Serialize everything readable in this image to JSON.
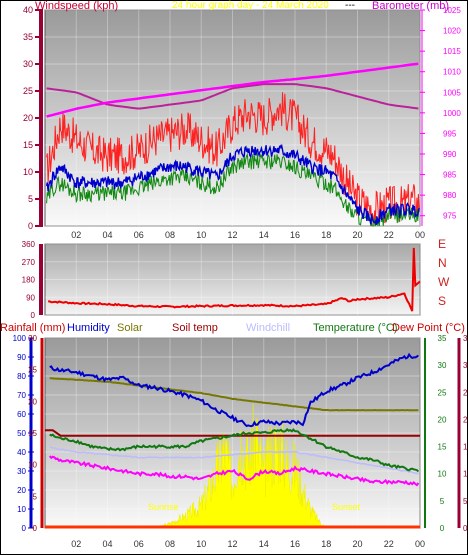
{
  "header": {
    "left_label": "Windspeed (kph)",
    "center_label": "24 hour graph day - 24 March 2020",
    "center_suffix": "---",
    "right_label": "Barometer (mb)"
  },
  "colors": {
    "wind_axis": "#990033",
    "baro_axis": "#ff00ff",
    "gust": "#ff2020",
    "avg": "#0000cc",
    "wind_min": "#118811",
    "baro_series": "#bb2299",
    "dir_series": "#ee0000",
    "hum": "#0000cc",
    "solar_line": "#777700",
    "soil": "#990000",
    "temp": "#117711",
    "dew": "#ff00ff",
    "windchill": "#bbbbff",
    "sun_fill": "#ffff00"
  },
  "chart_data": [
    {
      "type": "line",
      "title": "24 hour graph day - 24 March 2020",
      "ylabel": "Windspeed (kph)",
      "y2label": "Barometer (mb)",
      "x_tick_labels": [
        "02",
        "04",
        "06",
        "08",
        "10",
        "12",
        "14",
        "16",
        "18",
        "20",
        "22",
        "00"
      ],
      "xlim": [
        0,
        24
      ],
      "ylim": [
        0,
        40
      ],
      "y_ticks": [
        0,
        5,
        10,
        15,
        20,
        25,
        30,
        35,
        40
      ],
      "y2lim": [
        972.5,
        1025
      ],
      "y2_ticks": [
        975,
        980,
        985,
        990,
        995,
        1000,
        1005,
        1010,
        1015,
        1020,
        1025
      ],
      "grid": true,
      "series": [
        {
          "name": "Gust",
          "axis": "y",
          "x": [
            0,
            0.5,
            1,
            2,
            3,
            4,
            5,
            6,
            7,
            8,
            9,
            10,
            11,
            12,
            13,
            14,
            15,
            16,
            17,
            18,
            18.5,
            19,
            19.5,
            20,
            20.5,
            21,
            22,
            23,
            23.5,
            24
          ],
          "values": [
            9,
            14,
            19,
            16,
            14,
            13,
            13,
            14,
            16,
            17,
            18,
            16,
            14,
            19,
            21,
            20,
            22,
            20,
            16,
            14,
            13,
            10,
            7,
            5,
            4,
            3,
            4,
            4,
            5,
            4
          ]
        },
        {
          "name": "Average",
          "axis": "y",
          "x": [
            0,
            0.5,
            1,
            2,
            3,
            4,
            5,
            6,
            7,
            8,
            9,
            10,
            11,
            12,
            13,
            14,
            15,
            16,
            17,
            18,
            18.5,
            19,
            19.5,
            20,
            20.5,
            21,
            22,
            23,
            23.5,
            24
          ],
          "values": [
            6,
            9,
            11,
            8,
            8,
            8,
            8,
            9,
            10,
            11,
            11,
            10,
            9,
            13,
            14,
            14,
            14,
            13,
            11,
            10,
            9,
            7,
            5,
            3,
            2,
            1,
            3,
            3,
            3,
            3
          ]
        },
        {
          "name": "Wind min",
          "axis": "y",
          "x": [
            0,
            0.5,
            1,
            2,
            3,
            4,
            5,
            6,
            7,
            8,
            9,
            10,
            11,
            12,
            13,
            14,
            15,
            16,
            17,
            18,
            18.5,
            19,
            19.5,
            20,
            20.5,
            21,
            22,
            23,
            23.5,
            24
          ],
          "values": [
            4,
            7,
            8,
            6,
            6,
            6,
            6,
            7,
            8,
            9,
            9,
            8,
            7,
            11,
            12,
            12,
            12,
            11,
            9,
            8,
            7,
            5,
            3,
            2,
            1,
            0,
            2,
            2,
            2,
            2
          ]
        },
        {
          "name": "Barometer",
          "axis": "y2",
          "x": [
            0,
            2,
            4,
            6,
            8,
            10,
            12,
            14,
            16,
            18,
            20,
            22,
            24
          ],
          "values": [
            1006,
            1005,
            1002,
            1001,
            1002,
            1003,
            1006,
            1007,
            1007,
            1006,
            1004,
            1002,
            1001
          ]
        },
        {
          "name": "Barometer trend",
          "axis": "y2",
          "x": [
            0,
            2,
            4,
            6,
            8,
            10,
            12,
            14,
            16,
            18,
            20,
            22,
            24
          ],
          "values": [
            999,
            1001,
            1002.5,
            1003.5,
            1004.5,
            1005.5,
            1006.5,
            1007.5,
            1008.2,
            1009,
            1010,
            1011,
            1012
          ]
        }
      ]
    },
    {
      "type": "line",
      "y_tick_labels": [
        "360",
        "270",
        "180",
        "90",
        "0"
      ],
      "ylim": [
        0,
        360
      ],
      "y2_tick_labels": [
        "E",
        "N",
        "W",
        "S"
      ],
      "xlim": [
        0,
        24
      ],
      "series": [
        {
          "name": "Wind direction",
          "x": [
            0,
            1,
            2,
            4,
            6,
            8,
            10,
            12,
            14,
            16,
            18,
            19,
            19.5,
            20,
            22,
            23,
            23.5,
            23.6,
            23.7,
            24
          ],
          "values": [
            70,
            65,
            60,
            55,
            45,
            42,
            45,
            48,
            50,
            45,
            55,
            85,
            70,
            80,
            90,
            110,
            20,
            340,
            150,
            170
          ]
        }
      ]
    },
    {
      "type": "area",
      "legend": [
        "Rainfall (mm)",
        "Humidity",
        "Solar",
        "Soil temp",
        "Windchill",
        "Temperature (°C)",
        "Dew Point (°C)"
      ],
      "legend_placement": "top",
      "x_tick_labels": [
        "02",
        "04",
        "06",
        "08",
        "10",
        "12",
        "14",
        "16",
        "18",
        "20",
        "22",
        "00"
      ],
      "xlim": [
        0,
        24
      ],
      "y_humidity_ticks": [
        0,
        10,
        20,
        30,
        40,
        50,
        60,
        70,
        80,
        90,
        100
      ],
      "y_rain_ticks": [
        0,
        5,
        10,
        15,
        20,
        25,
        30
      ],
      "y_temp_ticks": [
        0,
        5,
        10,
        15,
        20,
        25,
        30,
        35
      ],
      "annotations": [
        "Sunrise",
        "Sunset"
      ],
      "series": [
        {
          "name": "Humidity",
          "x": [
            0,
            1,
            2,
            3,
            4,
            5,
            6,
            7,
            8,
            9,
            10,
            11,
            12,
            13,
            14,
            15,
            16,
            16.5,
            17,
            18,
            19,
            20,
            21,
            22,
            23,
            24
          ],
          "values": [
            85,
            83,
            82,
            80,
            78,
            79,
            75,
            74,
            72,
            70,
            67,
            62,
            58,
            54,
            56,
            55,
            56,
            55,
            66,
            72,
            75,
            79,
            82,
            86,
            90,
            91
          ]
        },
        {
          "name": "Solar",
          "x": [
            0,
            2,
            4,
            6,
            8,
            10,
            12,
            14,
            16,
            18,
            20,
            22,
            24
          ],
          "values": [
            79,
            78,
            77,
            75,
            73,
            71,
            68,
            66,
            64,
            62,
            62,
            62,
            62
          ]
        },
        {
          "name": "Soil temp",
          "x": [
            0,
            0.5,
            1,
            24
          ],
          "values": [
            18,
            18,
            17,
            17
          ]
        },
        {
          "name": "Temperature (°C)",
          "x": [
            0,
            1,
            2,
            3,
            4,
            5,
            6,
            7,
            8,
            9,
            10,
            11,
            12,
            13,
            14,
            15,
            16,
            17,
            18,
            19,
            20,
            21,
            22,
            23,
            24
          ],
          "values": [
            17.5,
            16.5,
            16,
            15,
            14.5,
            14.5,
            15,
            15,
            15,
            15,
            16,
            16.5,
            17,
            17.5,
            17.5,
            18,
            18,
            16.5,
            15,
            14,
            13,
            12.5,
            11.5,
            11,
            10.5
          ]
        },
        {
          "name": "Dew Point (°C)",
          "x": [
            0,
            1,
            2,
            3,
            4,
            5,
            6,
            7,
            8,
            9,
            10,
            11,
            12,
            13,
            14,
            15,
            16,
            17,
            18,
            19,
            20,
            21,
            22,
            23,
            24
          ],
          "values": [
            13.5,
            12.5,
            12,
            11.5,
            11,
            10.5,
            10,
            10,
            9.5,
            9.5,
            9,
            10,
            10.5,
            9,
            10.5,
            10,
            11,
            10.5,
            10,
            9.5,
            9,
            8.5,
            8.5,
            8.5,
            8
          ]
        },
        {
          "name": "Windchill",
          "x": [
            0,
            2,
            4,
            6,
            8,
            10,
            12,
            14,
            16,
            18,
            20,
            22,
            24
          ],
          "values": [
            15,
            14,
            13.5,
            13,
            13,
            13,
            13.5,
            14,
            14,
            13,
            12,
            11,
            10
          ]
        },
        {
          "name": "Solar radiation",
          "x": [
            7,
            8,
            9,
            10,
            10.5,
            11,
            11.5,
            12,
            12.5,
            13,
            13.5,
            14,
            14.5,
            15,
            15.5,
            16,
            16.5,
            17,
            17.5,
            18
          ],
          "values": [
            0,
            3,
            8,
            15,
            25,
            38,
            52,
            30,
            58,
            45,
            60,
            35,
            50,
            55,
            42,
            40,
            25,
            12,
            5,
            0
          ]
        },
        {
          "name": "Rainfall (mm)",
          "x": [
            0,
            24
          ],
          "values": [
            0,
            0
          ]
        }
      ]
    }
  ]
}
